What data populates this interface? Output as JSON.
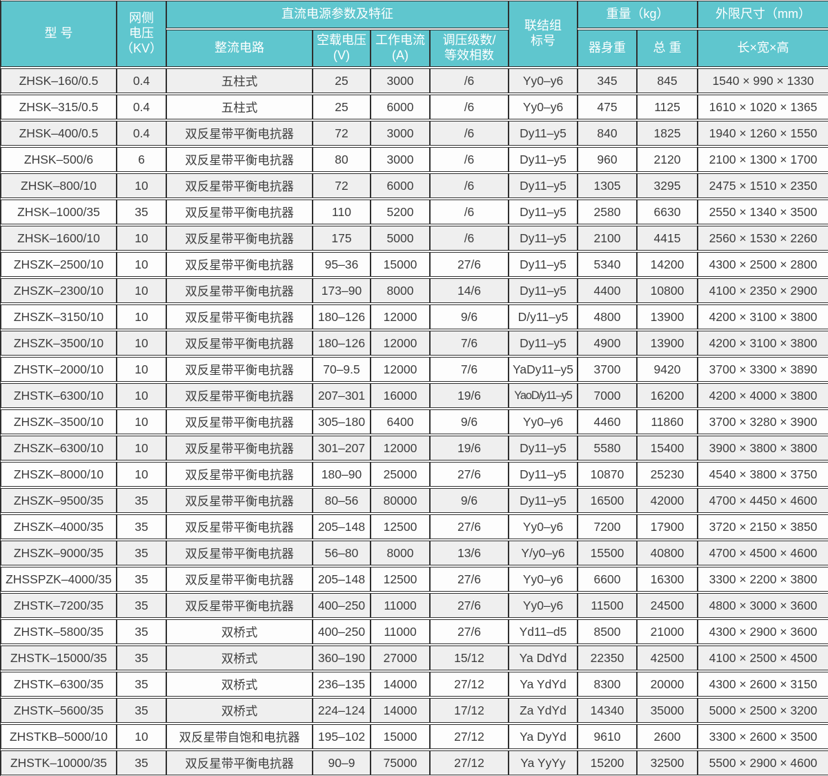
{
  "colors": {
    "header_bg": "#5FC6CE",
    "header_text": "#FFFFFF",
    "row_odd_bg": "#EFEFEF",
    "row_even_bg": "#FDFDFD",
    "border": "#2F2F2F",
    "body_text": "#3D3D3D"
  },
  "table": {
    "headers": {
      "model": "型  号",
      "grid_voltage": "网侧\n电压\n（KV）",
      "dc_group": "直流电源参数及特征",
      "rectifier": "整流电路",
      "no_load_voltage": "空载电压\n(V)",
      "working_current": "工作电流\n(A)",
      "regulation": "调压级数/\n等效相数",
      "connection": "联结组\n标号",
      "weight_group": "重量（kg）",
      "body_weight": "器身重",
      "total_weight": "总  重",
      "dimensions_group": "外限尺寸（mm）",
      "dimensions": "长×宽×高"
    },
    "column_keys": [
      "model",
      "grid-voltage",
      "rectifier",
      "no-load-voltage",
      "working-current",
      "regulation",
      "connection",
      "body-weight",
      "total-weight",
      "dimensions"
    ],
    "rows": [
      [
        "ZHSK–160/0.5",
        "0.4",
        "五柱式",
        "25",
        "3000",
        "/6",
        "Yy0–y6",
        "345",
        "845",
        "1540 × 990 × 1330"
      ],
      [
        "ZHSK–315/0.5",
        "0.4",
        "五柱式",
        "25",
        "6000",
        "/6",
        "Yy0–y6",
        "475",
        "1125",
        "1610 × 1020 × 1365"
      ],
      [
        "ZHSK–400/0.5",
        "0.4",
        "双反星带平衡电抗器",
        "72",
        "3000",
        "/6",
        "Dy11–y5",
        "840",
        "1825",
        "1940 × 1260 × 1550"
      ],
      [
        "ZHSK–500/6",
        "6",
        "双反星带平衡电抗器",
        "80",
        "3000",
        "/6",
        "Dy11–y5",
        "960",
        "2120",
        "2100 × 1300 × 1700"
      ],
      [
        "ZHSK–800/10",
        "10",
        "双反星带平衡电抗器",
        "72",
        "6000",
        "/6",
        "Dy11–y5",
        "1305",
        "3295",
        "2475 × 1510 × 2350"
      ],
      [
        "ZHSK–1000/35",
        "35",
        "双反星带平衡电抗器",
        "110",
        "5200",
        "/6",
        "Dy11–y5",
        "2580",
        "6630",
        "2550 × 1340 × 3500"
      ],
      [
        "ZHSK–1600/10",
        "10",
        "双反星带平衡电抗器",
        "175",
        "5000",
        "/6",
        "Dy11–y5",
        "2100",
        "4415",
        "2560 × 1530 × 2260"
      ],
      [
        "ZHSZK–2500/10",
        "10",
        "双反星带平衡电抗器",
        "95–36",
        "15000",
        "27/6",
        "Dy11–y5",
        "5340",
        "14200",
        "4300 × 2500 × 2800"
      ],
      [
        "ZHSZK–2300/10",
        "10",
        "双反星带平衡电抗器",
        "173–90",
        "8000",
        "14/6",
        "Dy11–y5",
        "4400",
        "10800",
        "4100 × 2350 × 2900"
      ],
      [
        "ZHSZK–3150/10",
        "10",
        "双反星带平衡电抗器",
        "180–126",
        "12000",
        "9/6",
        "D/y11–y5",
        "4800",
        "13900",
        "4200 × 3100 × 3800"
      ],
      [
        "ZHSZK–3500/10",
        "10",
        "双反星带平衡电抗器",
        "180–126",
        "12000",
        "7/6",
        "Dy11–y5",
        "4900",
        "13900",
        "4200 × 3100 × 3800"
      ],
      [
        "ZHSTK–2000/10",
        "10",
        "双反星带平衡电抗器",
        "70–9.5",
        "12000",
        "7/6",
        "YaDy11–y5",
        "3700",
        "9420",
        "3700 × 3300 × 3890"
      ],
      [
        "ZHSTK–6300/10",
        "10",
        "双反星带平衡电抗器",
        "207–301",
        "16000",
        "19/6",
        "YaoD/y11–y5",
        "7000",
        "16200",
        "4200 × 4000 × 3800"
      ],
      [
        "ZHSZK–3500/10",
        "10",
        "双反星带平衡电抗器",
        "305–180",
        "6400",
        "9/6",
        "Yy0–y6",
        "4460",
        "11860",
        "3700 × 3280 × 3900"
      ],
      [
        "ZHSZK–6300/10",
        "10",
        "双反星带平衡电抗器",
        "301–207",
        "12000",
        "19/6",
        "Dy11–y5",
        "5580",
        "15400",
        "3900 × 3800 × 3800"
      ],
      [
        "ZHSZK–8000/10",
        "10",
        "双反星带平衡电抗器",
        "180–90",
        "25000",
        "27/6",
        "Dy11–y5",
        "10870",
        "25230",
        "4540 × 3800 × 3750"
      ],
      [
        "ZHSZK–9500/35",
        "35",
        "双反星带平衡电抗器",
        "80–56",
        "80000",
        "9/6",
        "Dy11–y5",
        "16500",
        "42000",
        "4700 × 4450 × 4600"
      ],
      [
        "ZHSZK–4000/35",
        "35",
        "双反星带平衡电抗器",
        "205–148",
        "12500",
        "27/6",
        "Yy0–y6",
        "7200",
        "17900",
        "3720 × 2150 × 3850"
      ],
      [
        "ZHSZK–9000/35",
        "35",
        "双反星带平衡电抗器",
        "56–80",
        "8000",
        "13/6",
        "Y/y0–y6",
        "15500",
        "40800",
        "4700 × 4500 × 4600"
      ],
      [
        "ZHSSPZK–4000/35",
        "35",
        "双反星带平衡电抗器",
        "205–148",
        "12500",
        "27/6",
        "Yy0–y6",
        "6600",
        "16300",
        "3300 × 2200 × 3800"
      ],
      [
        "ZHSTK–7200/35",
        "35",
        "双反星带平衡电抗器",
        "400–250",
        "11000",
        "27/6",
        "Yy0–y6",
        "11500",
        "24500",
        "4800 × 3000 × 3600"
      ],
      [
        "ZHSTK–5800/35",
        "35",
        "双桥式",
        "400–250",
        "11000",
        "27/6",
        "Yd11–d5",
        "8500",
        "21000",
        "4300 × 2900 × 3600"
      ],
      [
        "ZHSTK–15000/35",
        "35",
        "双桥式",
        "360–190",
        "27000",
        "15/12",
        "Ya DdYd",
        "22350",
        "42500",
        "4100 × 2500 × 4500"
      ],
      [
        "ZHSTK–6300/35",
        "35",
        "双桥式",
        "236–135",
        "14000",
        "27/12",
        "Ya YdYd",
        "8300",
        "20000",
        "4300 × 2600 × 3150"
      ],
      [
        "ZHSTK–5600/35",
        "35",
        "双桥式",
        "224–124",
        "14000",
        "17/12",
        "Za YdYd",
        "14340",
        "35000",
        "5000 × 2500 × 3200"
      ],
      [
        "ZHSTKB–5000/10",
        "10",
        "双反星带自饱和电抗器",
        "195–102",
        "15000",
        "27/12",
        "Ya DyYd",
        "9610",
        "2600",
        "3300 × 2600 × 3500"
      ],
      [
        "ZHSTK–10000/35",
        "35",
        "双反星带平衡电抗器",
        "90–9",
        "75000",
        "27/12",
        "Ya YyYy",
        "15200",
        "32500",
        "5500 × 2900 × 4600"
      ]
    ]
  }
}
